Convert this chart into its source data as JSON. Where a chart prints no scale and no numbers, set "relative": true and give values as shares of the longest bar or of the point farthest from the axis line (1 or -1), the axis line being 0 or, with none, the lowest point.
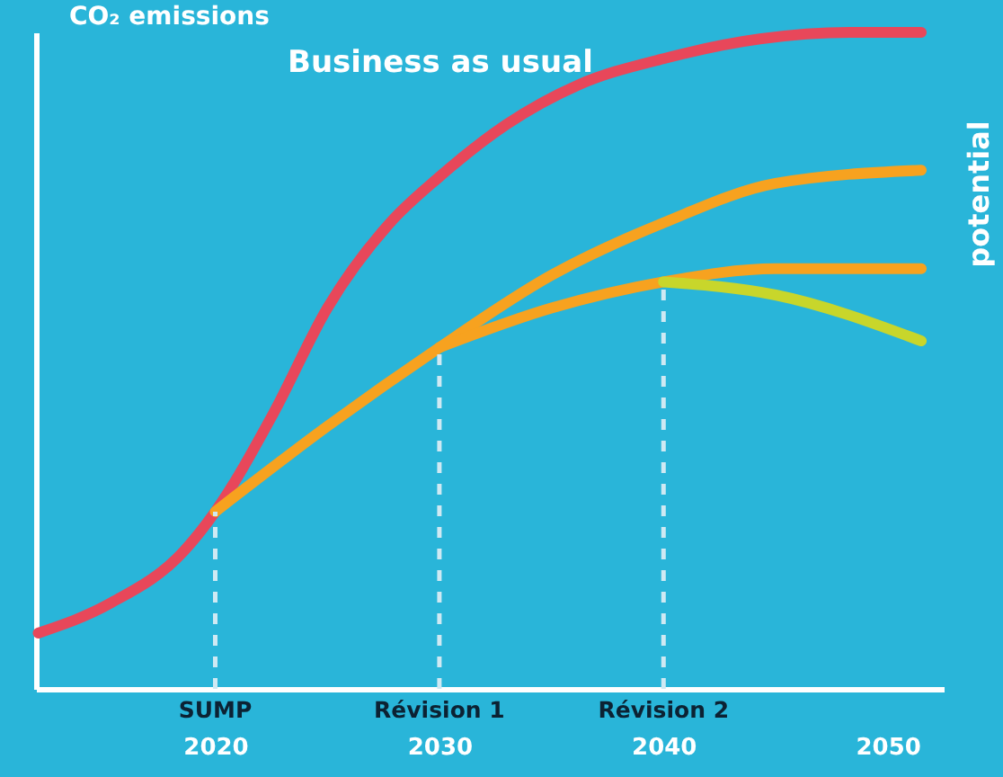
{
  "chart_data": {
    "type": "line",
    "relative": true,
    "ylabel": "CO₂ emissions",
    "xlim": [
      2012,
      2052.5
    ],
    "xticks": [
      2020,
      2030,
      2040,
      2050
    ],
    "grid": false,
    "marker": "none",
    "line_style": "solid",
    "series": [
      {
        "color": "#e8475a",
        "x": [
          2012.1,
          2015.3,
          2018.6,
          2020,
          2022.6,
          2025,
          2027.8,
          2030,
          2033,
          2036.2,
          2040,
          2044.3,
          2048.3,
          2051.5
        ],
        "values": [
          0.085,
          0.13,
          0.21,
          0.27,
          0.42,
          0.58,
          0.71,
          0.78,
          0.86,
          0.92,
          0.96,
          0.99,
          1.0,
          1.0
        ]
      },
      {
        "color": "#f7a21f",
        "x": [
          2020,
          2025,
          2030,
          2035,
          2040,
          2045,
          2051.5
        ],
        "values": [
          0.27,
          0.4,
          0.52,
          0.63,
          0.71,
          0.77,
          0.79
        ]
      },
      {
        "color": "#f7a21f",
        "x": [
          2030,
          2035,
          2040,
          2045,
          2051.5
        ],
        "values": [
          0.52,
          0.58,
          0.62,
          0.64,
          0.64
        ]
      },
      {
        "color": "#c8d62b",
        "x": [
          2040,
          2045,
          2051.5
        ],
        "values": [
          0.62,
          0.6,
          0.53
        ]
      }
    ],
    "ref_lines": [
      {
        "axis": "x",
        "value": 2020,
        "label": "SUMP",
        "color": "#cfe9f3",
        "line_style": "dashed"
      },
      {
        "axis": "x",
        "value": 2030,
        "label": "Révision 1",
        "color": "#cfe9f3",
        "line_style": "dashed"
      },
      {
        "axis": "x",
        "value": 2040,
        "label": "Révision 2",
        "color": "#cfe9f3",
        "line_style": "dashed"
      }
    ],
    "annotations": [
      "Business as usual",
      "potential"
    ]
  }
}
